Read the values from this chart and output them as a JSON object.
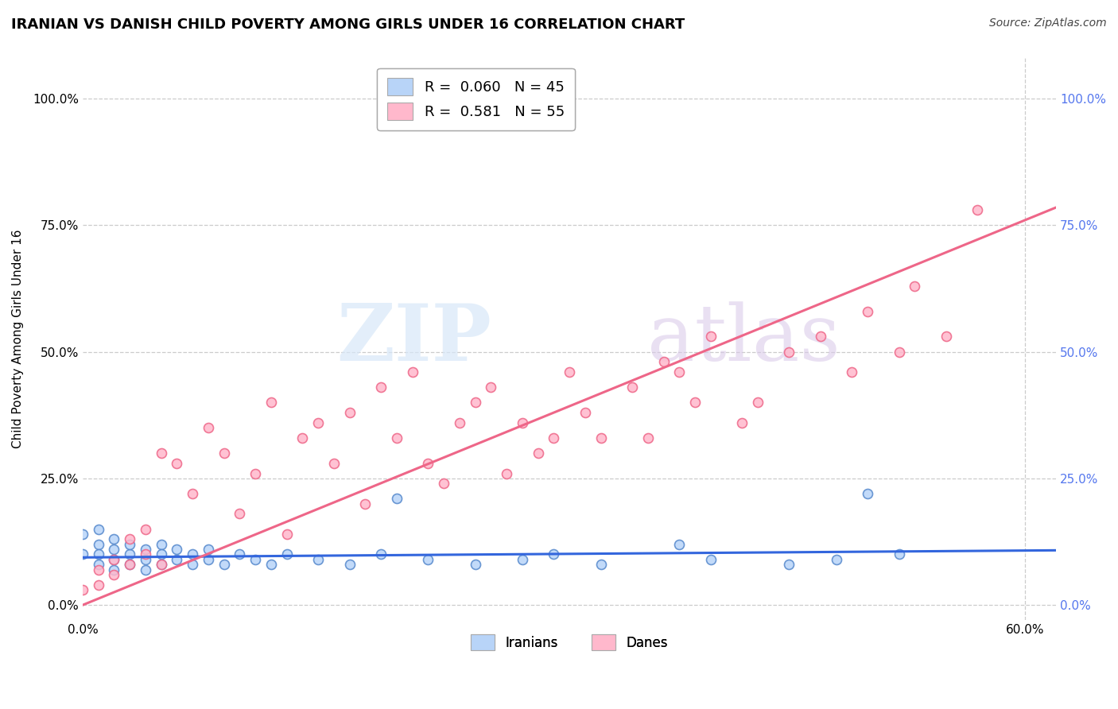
{
  "title": "IRANIAN VS DANISH CHILD POVERTY AMONG GIRLS UNDER 16 CORRELATION CHART",
  "source": "Source: ZipAtlas.com",
  "ylabel": "Child Poverty Among Girls Under 16",
  "xlim": [
    0.0,
    0.62
  ],
  "ylim": [
    -0.03,
    1.08
  ],
  "xtick_labels": [
    "0.0%",
    "60.0%"
  ],
  "xtick_values": [
    0.0,
    0.6
  ],
  "ytick_labels": [
    "0.0%",
    "25.0%",
    "50.0%",
    "75.0%",
    "100.0%"
  ],
  "ytick_values": [
    0.0,
    0.25,
    0.5,
    0.75,
    1.0
  ],
  "legend_items": [
    {
      "label": "R =  0.060   N = 45",
      "color": "#b8d4f8"
    },
    {
      "label": "R =  0.581   N = 55",
      "color": "#ffb8cc"
    }
  ],
  "legend_bottom": [
    {
      "label": "Iranians",
      "color": "#b8d4f8"
    },
    {
      "label": "Danes",
      "color": "#ffb8cc"
    }
  ],
  "watermark_zip": "ZIP",
  "watermark_atlas": "atlas",
  "iranian_x": [
    0.0,
    0.0,
    0.01,
    0.01,
    0.01,
    0.01,
    0.02,
    0.02,
    0.02,
    0.02,
    0.03,
    0.03,
    0.03,
    0.04,
    0.04,
    0.04,
    0.05,
    0.05,
    0.05,
    0.06,
    0.06,
    0.07,
    0.07,
    0.08,
    0.08,
    0.09,
    0.1,
    0.11,
    0.12,
    0.13,
    0.15,
    0.17,
    0.19,
    0.2,
    0.22,
    0.25,
    0.28,
    0.3,
    0.33,
    0.38,
    0.4,
    0.45,
    0.48,
    0.5,
    0.52
  ],
  "iranian_y": [
    0.14,
    0.1,
    0.12,
    0.08,
    0.15,
    0.1,
    0.09,
    0.13,
    0.07,
    0.11,
    0.1,
    0.08,
    0.12,
    0.09,
    0.11,
    0.07,
    0.08,
    0.12,
    0.1,
    0.09,
    0.11,
    0.08,
    0.1,
    0.09,
    0.11,
    0.08,
    0.1,
    0.09,
    0.08,
    0.1,
    0.09,
    0.08,
    0.1,
    0.21,
    0.09,
    0.08,
    0.09,
    0.1,
    0.08,
    0.12,
    0.09,
    0.08,
    0.09,
    0.22,
    0.1
  ],
  "danish_x": [
    0.0,
    0.01,
    0.01,
    0.02,
    0.02,
    0.03,
    0.03,
    0.04,
    0.04,
    0.05,
    0.05,
    0.06,
    0.07,
    0.08,
    0.09,
    0.1,
    0.11,
    0.12,
    0.13,
    0.14,
    0.15,
    0.16,
    0.17,
    0.18,
    0.19,
    0.2,
    0.21,
    0.22,
    0.23,
    0.24,
    0.25,
    0.26,
    0.27,
    0.28,
    0.29,
    0.3,
    0.31,
    0.32,
    0.33,
    0.35,
    0.36,
    0.37,
    0.38,
    0.39,
    0.4,
    0.42,
    0.43,
    0.45,
    0.47,
    0.49,
    0.5,
    0.52,
    0.53,
    0.55,
    0.57
  ],
  "danish_y": [
    0.03,
    0.04,
    0.07,
    0.06,
    0.09,
    0.08,
    0.13,
    0.1,
    0.15,
    0.3,
    0.08,
    0.28,
    0.22,
    0.35,
    0.3,
    0.18,
    0.26,
    0.4,
    0.14,
    0.33,
    0.36,
    0.28,
    0.38,
    0.2,
    0.43,
    0.33,
    0.46,
    0.28,
    0.24,
    0.36,
    0.4,
    0.43,
    0.26,
    0.36,
    0.3,
    0.33,
    0.46,
    0.38,
    0.33,
    0.43,
    0.33,
    0.48,
    0.46,
    0.4,
    0.53,
    0.36,
    0.4,
    0.5,
    0.53,
    0.46,
    0.58,
    0.5,
    0.63,
    0.53,
    0.78
  ],
  "iranian_trend_x": [
    0.0,
    0.62
  ],
  "iranian_trend_y": [
    0.094,
    0.108
  ],
  "iranian_trend_color": "#3366dd",
  "iranian_trend_linestyle": "-",
  "danish_trend_x": [
    0.0,
    0.62
  ],
  "danish_trend_y": [
    0.0,
    0.785
  ],
  "danish_trend_color": "#ee6688",
  "danish_trend_linestyle": "-",
  "iranian_scatter_color": "#b8d4f8",
  "iranian_scatter_edge": "#5588cc",
  "danish_scatter_color": "#ffb8cc",
  "danish_scatter_edge": "#ee6688",
  "scatter_size": 75,
  "scatter_linewidth": 1.2,
  "grid_color": "#cccccc",
  "grid_linestyle": "--",
  "background_color": "#ffffff",
  "title_fontsize": 13,
  "ylabel_fontsize": 11,
  "tick_fontsize": 11,
  "right_tick_color": "#5577ee",
  "left_tick_color": "#000000",
  "legend_fontsize": 13
}
